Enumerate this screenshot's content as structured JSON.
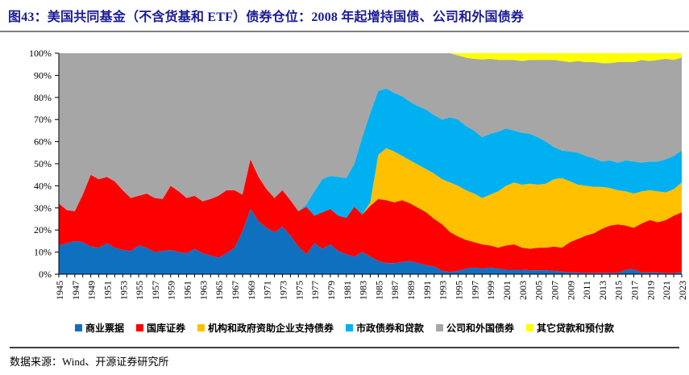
{
  "title": "图43：美国共同基金（不含货基和 ETF）债券仓位：2008 年起增持国债、公司和外国债券",
  "source": "数据来源：Wind、开源证券研究所",
  "chart_data": {
    "type": "area",
    "stacked": true,
    "unit": "%",
    "ylim": [
      0,
      100
    ],
    "grid": false,
    "legend_position": "bottom",
    "y_ticks": [
      "0%",
      "10%",
      "20%",
      "30%",
      "40%",
      "50%",
      "60%",
      "70%",
      "80%",
      "90%",
      "100%"
    ],
    "x_tick_years": [
      1945,
      1947,
      1949,
      1951,
      1953,
      1955,
      1957,
      1959,
      1961,
      1963,
      1965,
      1967,
      1969,
      1971,
      1973,
      1975,
      1977,
      1979,
      1981,
      1983,
      1985,
      1987,
      1989,
      1991,
      1993,
      1995,
      1997,
      1999,
      2001,
      2003,
      2005,
      2007,
      2009,
      2011,
      2013,
      2015,
      2017,
      2019,
      2021,
      2023
    ],
    "x": [
      1945,
      1946,
      1947,
      1948,
      1949,
      1950,
      1951,
      1952,
      1953,
      1954,
      1955,
      1956,
      1957,
      1958,
      1959,
      1960,
      1961,
      1962,
      1963,
      1964,
      1965,
      1966,
      1967,
      1968,
      1969,
      1970,
      1971,
      1972,
      1973,
      1974,
      1975,
      1976,
      1977,
      1978,
      1979,
      1980,
      1981,
      1982,
      1983,
      1984,
      1985,
      1986,
      1987,
      1988,
      1989,
      1990,
      1991,
      1992,
      1993,
      1994,
      1995,
      1996,
      1997,
      1998,
      1999,
      2000,
      2001,
      2002,
      2003,
      2004,
      2005,
      2006,
      2007,
      2008,
      2009,
      2010,
      2011,
      2012,
      2013,
      2014,
      2015,
      2016,
      2017,
      2018,
      2019,
      2020,
      2021,
      2022,
      2023
    ],
    "series": [
      {
        "name": "商业票据",
        "color": "#1070C0",
        "values": [
          13,
          14,
          15,
          14.5,
          12.5,
          12,
          14,
          12,
          11,
          10.5,
          13,
          12,
          10,
          10.5,
          11,
          10,
          9.5,
          11.5,
          9.5,
          8.5,
          7.5,
          9.5,
          12,
          19.5,
          29.5,
          24,
          21,
          19,
          21.5,
          17.5,
          12.5,
          9,
          14,
          11.5,
          13.5,
          10.5,
          9,
          8,
          10,
          8,
          6,
          5,
          5,
          5.5,
          6,
          5,
          4,
          3.5,
          1.5,
          1,
          1.5,
          2.5,
          3,
          2.5,
          3,
          2.5,
          2,
          2,
          2,
          1.8,
          1.8,
          1.8,
          1.5,
          1.2,
          0.8,
          0.8,
          0.6,
          0.6,
          0.6,
          0.6,
          0.6,
          2,
          2.2,
          0.8,
          0.8,
          0.8,
          0.5,
          0.5,
          1
        ]
      },
      {
        "name": "国库证券",
        "color": "#FF0000",
        "values": [
          19,
          15,
          13.5,
          21.5,
          32.5,
          31,
          30,
          30,
          27,
          24,
          22.5,
          24.5,
          24.5,
          23.5,
          29,
          27.5,
          25,
          24,
          23.5,
          25.5,
          28,
          28.5,
          26,
          16.5,
          22.5,
          20,
          17.5,
          15.5,
          16.5,
          16,
          16,
          21.5,
          12.5,
          16.5,
          16,
          16,
          16.5,
          22.5,
          17,
          23,
          28,
          28.5,
          27.5,
          28,
          26,
          25,
          24,
          21.5,
          21,
          18,
          15.5,
          13,
          11.5,
          11,
          10,
          9.5,
          11,
          11.5,
          10,
          9.7,
          10.2,
          10.2,
          11,
          10.8,
          13.7,
          15.2,
          16.9,
          17.9,
          19.9,
          21.4,
          21.9,
          20,
          18.8,
          22.2,
          23.7,
          22.7,
          24,
          26,
          27
        ]
      },
      {
        "name": "机构和政府资助企业支持债券",
        "color": "#FFC000",
        "values": [
          0,
          0,
          0,
          0,
          0,
          0,
          0,
          0,
          0,
          0,
          0,
          0,
          0,
          0,
          0,
          0,
          0,
          0,
          0,
          0,
          0,
          0,
          0,
          0,
          0,
          0,
          0,
          0,
          0,
          0,
          0,
          0,
          0,
          0,
          0,
          0,
          0,
          0,
          0,
          1.5,
          20,
          23.5,
          23,
          20,
          19.5,
          19.5,
          19.5,
          20.5,
          20.5,
          22.5,
          23,
          22.5,
          22,
          21,
          23,
          25.5,
          27,
          28,
          28.5,
          29.5,
          28.5,
          29,
          30.5,
          31.5,
          27.5,
          24.5,
          22.5,
          21,
          19,
          17,
          15.5,
          15.5,
          15.5,
          14.5,
          13.5,
          14,
          12.5,
          12,
          13.5
        ]
      },
      {
        "name": "市政债券和贷款",
        "color": "#00B0F0",
        "values": [
          0,
          0,
          0,
          0,
          0,
          0,
          0,
          0,
          0,
          0,
          0,
          0,
          0,
          0,
          0,
          0,
          0,
          0,
          0,
          0,
          0,
          0,
          0,
          0,
          0,
          0,
          0,
          0,
          0,
          0,
          0,
          1,
          11,
          15,
          15,
          17.5,
          18,
          19.5,
          35,
          40.5,
          29,
          27,
          26.5,
          27,
          26.5,
          26.5,
          27,
          26.5,
          27,
          29.5,
          30,
          29,
          28.5,
          27.5,
          27.5,
          27,
          26,
          23.5,
          23.5,
          22.5,
          21.5,
          19,
          14.5,
          12.5,
          13.5,
          14.5,
          13.5,
          13,
          11.5,
          12.5,
          12.5,
          14,
          14.5,
          13,
          13,
          13.5,
          15,
          15,
          14.5
        ]
      },
      {
        "name": "公司和外国债券",
        "color": "#A6A6A6",
        "values": [
          68,
          71,
          71.5,
          64,
          55,
          57,
          56,
          58,
          62,
          65.5,
          64.5,
          63.5,
          65.5,
          66,
          60,
          62.5,
          65.5,
          64.5,
          67,
          66,
          64.5,
          62,
          62,
          64,
          48,
          56,
          61.5,
          65.5,
          62,
          66.5,
          71.5,
          68.5,
          62.5,
          57,
          55.5,
          56,
          56.5,
          50,
          38,
          27,
          17,
          16,
          18,
          19.5,
          22,
          24,
          25.5,
          28,
          30,
          29,
          29,
          31,
          32.5,
          35.2,
          34,
          32.5,
          31,
          32,
          32.5,
          33.5,
          35,
          37,
          39.5,
          40.5,
          40.5,
          41.5,
          42.5,
          43.5,
          44.5,
          44,
          45.5,
          44.5,
          45,
          46.5,
          45.5,
          46,
          45.5,
          43.5,
          42
        ]
      },
      {
        "name": "其它贷款和预付款",
        "color": "#FFFF00",
        "values": [
          0,
          0,
          0,
          0,
          0,
          0,
          0,
          0,
          0,
          0,
          0,
          0,
          0,
          0,
          0,
          0,
          0,
          0,
          0,
          0,
          0,
          0,
          0,
          0,
          0,
          0,
          0,
          0,
          0,
          0,
          0,
          0,
          0,
          0,
          0,
          0,
          0,
          0,
          0,
          0,
          0,
          0,
          0,
          0,
          0,
          0,
          0,
          0,
          0,
          0,
          1,
          2,
          2.5,
          2.8,
          2.5,
          3,
          3,
          3,
          3.5,
          3,
          3,
          3,
          3,
          3.5,
          4,
          3.5,
          4,
          4,
          4.5,
          4.5,
          4,
          4,
          4,
          3,
          3.5,
          3,
          2.5,
          3,
          2
        ]
      }
    ]
  }
}
